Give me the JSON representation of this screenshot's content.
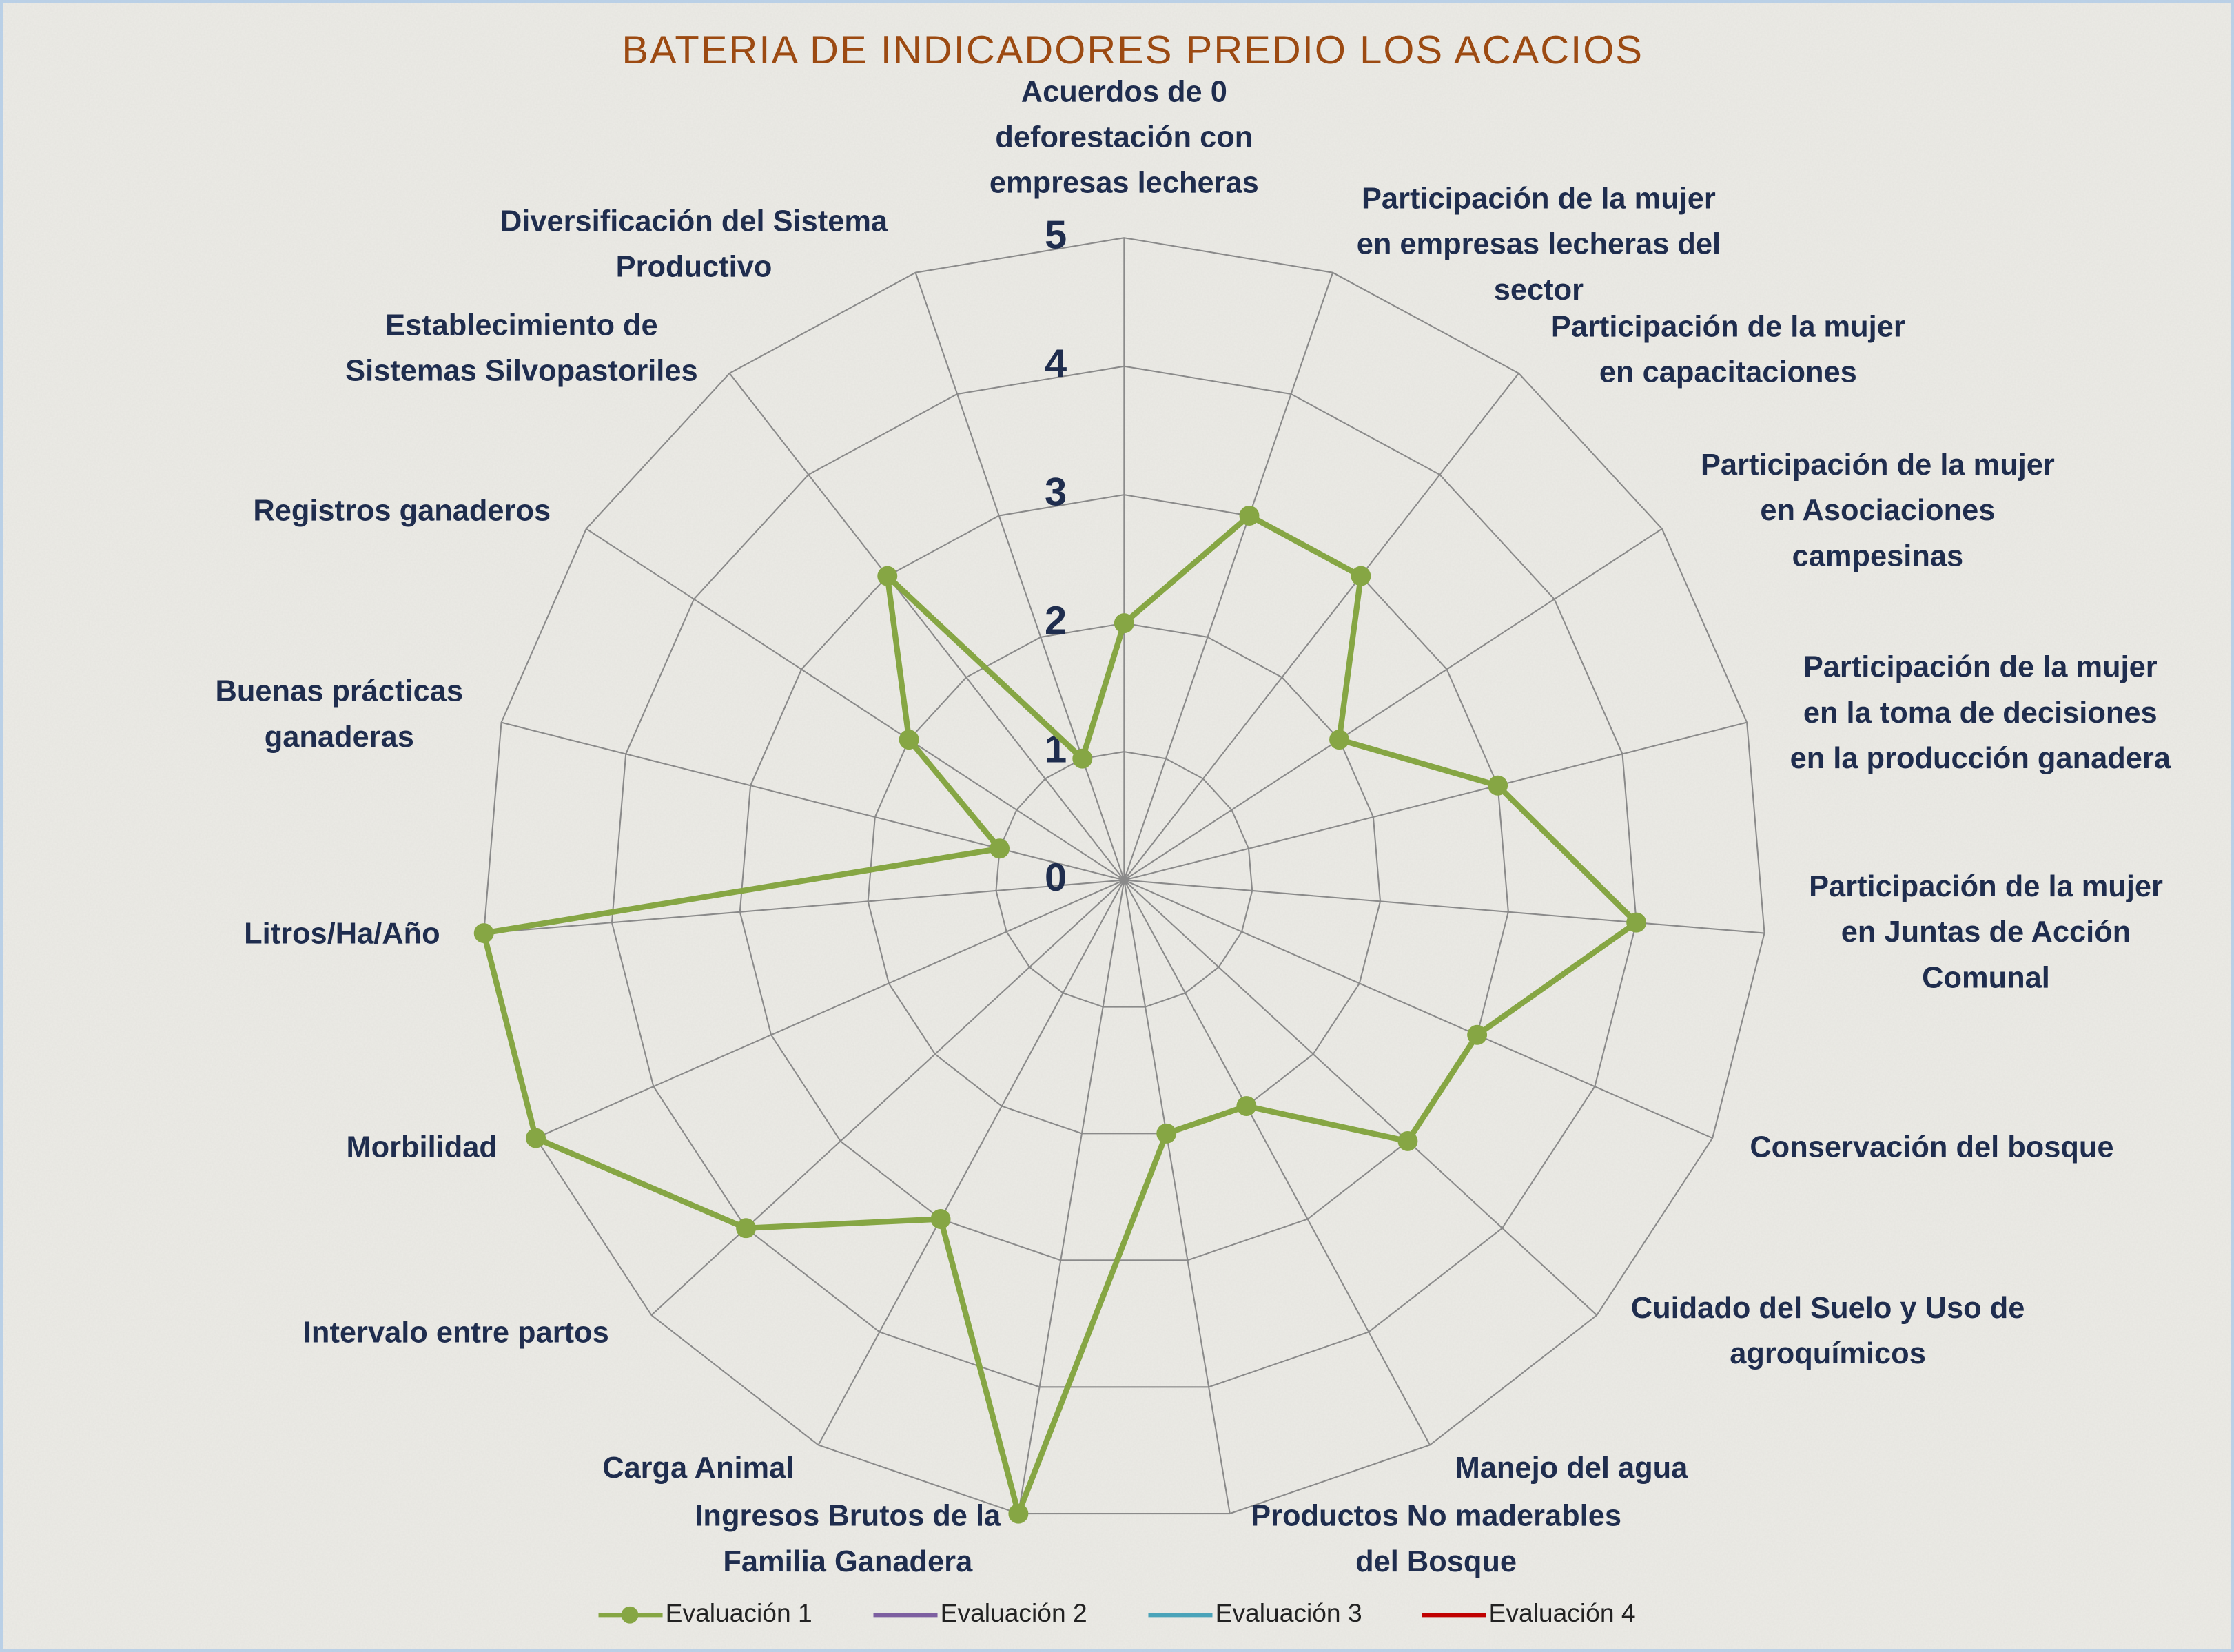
{
  "chart_data": {
    "type": "radar",
    "title": "BATERIA DE INDICADORES PREDIO LOS ACACIOS",
    "categories": [
      "Acuerdos de 0\ndeforestación con\nempresas lecheras",
      "Participación de la mujer\nen empresas lecheras del\nsector",
      "Participación de la mujer\nen capacitaciones",
      "Participación de la mujer\nen Asociaciones\ncampesinas",
      "Participación de la mujer\nen la toma de decisiones\nen la producción ganadera",
      "Participación de la mujer\nen Juntas de Acción\nComunal",
      "Conservación del bosque",
      "Cuidado del Suelo y Uso de\nagroquímicos",
      "Manejo del agua",
      "Productos No maderables\ndel Bosque",
      "Ingresos Brutos de la\nFamilia Ganadera",
      "Carga Animal",
      "Intervalo entre partos",
      "Morbilidad",
      "Litros/Ha/Año",
      "Buenas prácticas\nganaderas",
      "Registros ganaderos",
      "Establecimiento de\nSistemas Silvopastoriles",
      "Diversificación del Sistema\nProductivo"
    ],
    "series": [
      {
        "name": "Evaluación 1",
        "color": "#86a644",
        "values": [
          2,
          3,
          3,
          2,
          3,
          4,
          3,
          3,
          2,
          2,
          5,
          3,
          4,
          5,
          5,
          1,
          2,
          3,
          1
        ]
      },
      {
        "name": "Evaluación 2",
        "color": "#7d5fa0",
        "values": [
          null,
          null,
          null,
          null,
          null,
          null,
          null,
          null,
          null,
          null,
          null,
          null,
          null,
          null,
          null,
          null,
          null,
          null,
          null
        ]
      },
      {
        "name": "Evaluación 3",
        "color": "#4aa3b9",
        "values": [
          null,
          null,
          null,
          null,
          null,
          null,
          null,
          null,
          null,
          null,
          null,
          null,
          null,
          null,
          null,
          null,
          null,
          null,
          null
        ]
      },
      {
        "name": "Evaluación 4",
        "color": "#c00000",
        "values": [
          null,
          null,
          null,
          null,
          null,
          null,
          null,
          null,
          null,
          null,
          null,
          null,
          null,
          null,
          null,
          null,
          null,
          null,
          null
        ]
      }
    ],
    "ylim": [
      0,
      5
    ],
    "yticks": [
      0,
      1,
      2,
      3,
      4,
      5
    ],
    "grid": true,
    "legend": "bottom"
  }
}
